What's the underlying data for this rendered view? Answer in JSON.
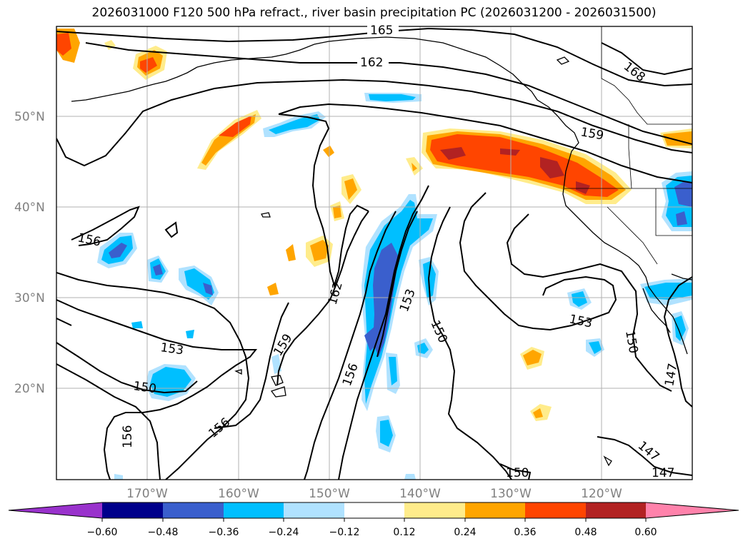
{
  "title": "2026031000 F120 500 hPa refract., river basin precipitation PC (2026031200 - 2026031500)",
  "map": {
    "lat_labels": [
      "50°N",
      "40°N",
      "30°N",
      "20°N"
    ],
    "lon_labels": [
      "170°W",
      "160°W",
      "150°W",
      "140°W",
      "130°W",
      "120°W"
    ],
    "contour_labels": [
      "165",
      "162",
      "168",
      "159",
      "156",
      "162",
      "153",
      "150",
      "153",
      "153",
      "150",
      "159",
      "156",
      "150",
      "156",
      "150",
      "147",
      "147",
      "147"
    ]
  },
  "colorbar": {
    "ticks": [
      "−0.60",
      "−0.48",
      "−0.36",
      "−0.24",
      "−0.12",
      "0.12",
      "0.24",
      "0.36",
      "0.48",
      "0.60"
    ],
    "colors": [
      "#9932cc",
      "#00008b",
      "#3a5fcd",
      "#00bfff",
      "#b0e2ff",
      "#ffffff",
      "#ffec8b",
      "#ffa500",
      "#ff4500",
      "#b22222",
      "#ff82ab"
    ]
  }
}
